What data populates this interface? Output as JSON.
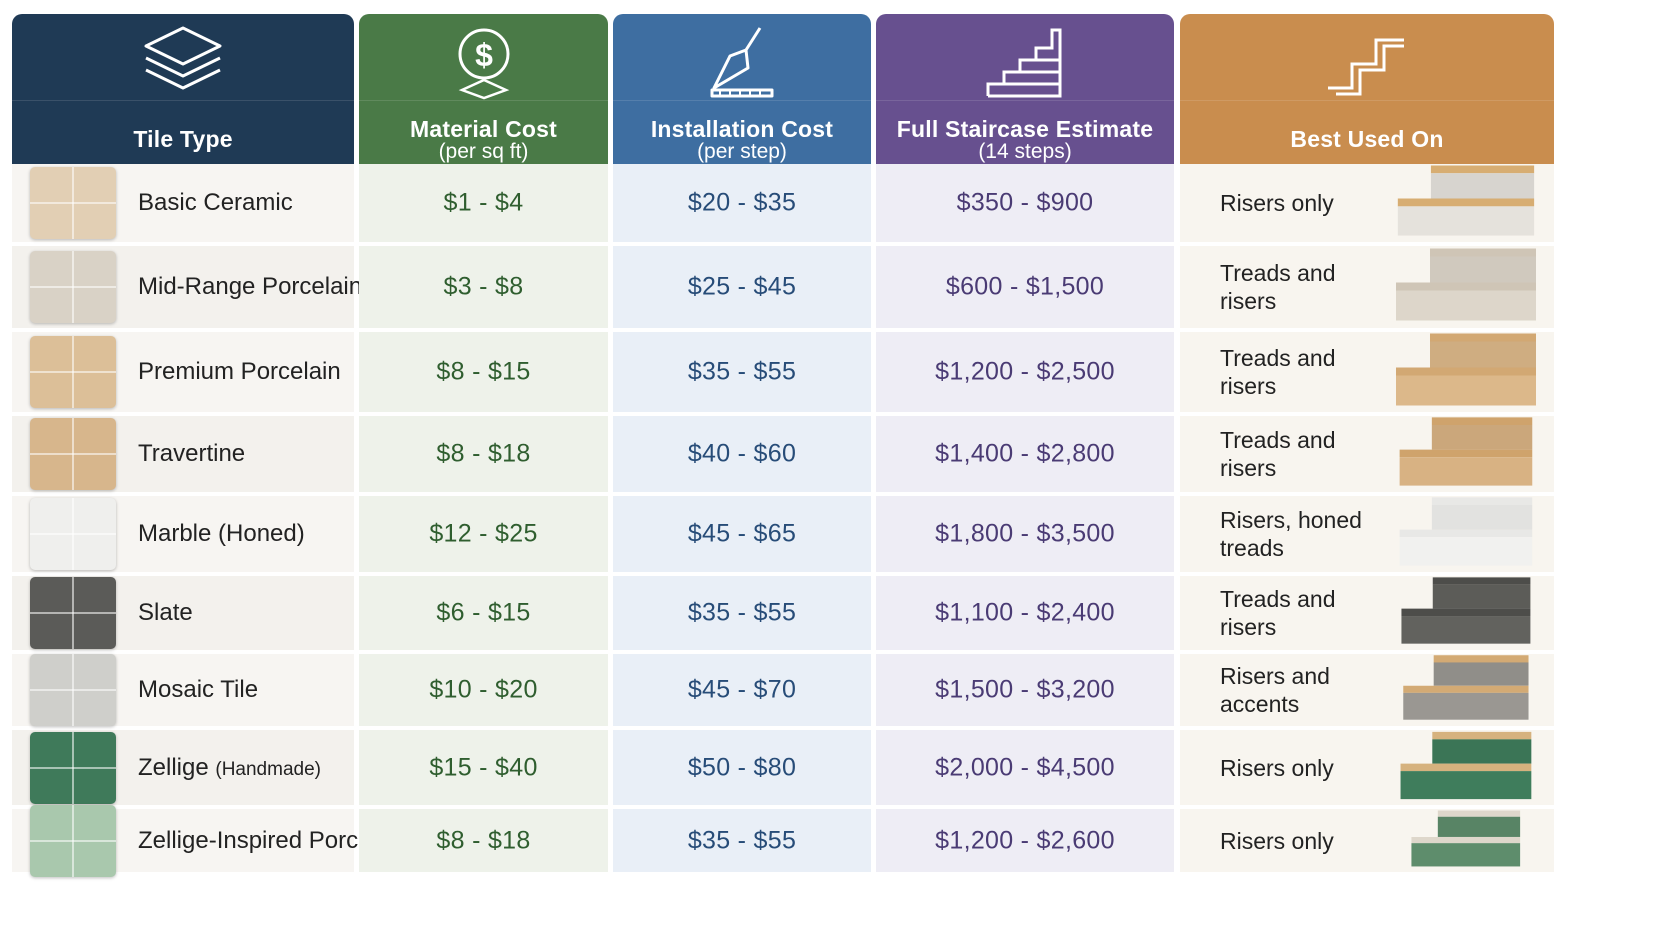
{
  "colors": {
    "tile_header": "#1f3a55",
    "material_header": "#4a7a47",
    "install_header": "#3e6ea1",
    "estimate_header": "#67508f",
    "best_header": "#c98d4e"
  },
  "headers": {
    "tile_type": {
      "label": "Tile Type",
      "icon": "layers-icon"
    },
    "material_cost": {
      "label": "Material Cost",
      "sub": "(per sq ft)",
      "icon": "dollar-coin-icon"
    },
    "installation_cost": {
      "label": "Installation Cost",
      "sub": "(per step)",
      "icon": "trowel-icon"
    },
    "full_estimate": {
      "label": "Full Staircase Estimate",
      "sub": "(14 steps)",
      "icon": "staircase-icon"
    },
    "best_used_on": {
      "label": "Best Used On",
      "icon": "stair-outline-icon"
    }
  },
  "rows": [
    {
      "name": "Basic Ceramic",
      "name_small": "",
      "material": "$1 - $4",
      "install": "$20 - $35",
      "estimate": "$350 - $900",
      "best": "Risers only",
      "swatch": "#e2cfb4",
      "tread": "#d7ad72",
      "riser": "#e5e2dc"
    },
    {
      "name": "Mid-Range Porcelain",
      "name_small": "",
      "material": "$3 - $8",
      "install": "$25 - $45",
      "estimate": "$600 - $1,500",
      "best": "Treads and risers",
      "swatch": "#d9d2c6",
      "tread": "#cfc5b6",
      "riser": "#ddd6ca"
    },
    {
      "name": "Premium Porcelain",
      "name_small": "",
      "material": "$8 - $15",
      "install": "$35 - $55",
      "estimate": "$1,200 - $2,500",
      "best": "Treads and risers",
      "swatch": "#dcbf98",
      "tread": "#d2a873",
      "riser": "#dcb88a"
    },
    {
      "name": "Travertine",
      "name_small": "",
      "material": "$8 - $18",
      "install": "$40 - $60",
      "estimate": "$1,400 - $2,800",
      "best": "Treads and risers",
      "swatch": "#d7b68c",
      "tread": "#cfa36c",
      "riser": "#d8b283"
    },
    {
      "name": "Marble (Honed)",
      "name_small": "",
      "material": "$12 - $25",
      "install": "$45 - $65",
      "estimate": "$1,800 - $3,500",
      "best": "Risers, honed treads",
      "swatch": "#efefed",
      "tread": "#e8e8e6",
      "riser": "#f1f1ef"
    },
    {
      "name": "Slate",
      "name_small": "",
      "material": "$6 - $15",
      "install": "$35 - $55",
      "estimate": "$1,100 - $2,400",
      "best": "Treads and risers",
      "swatch": "#5b5b58",
      "tread": "#4d4d4a",
      "riser": "#62625e"
    },
    {
      "name": "Mosaic Tile",
      "name_small": "",
      "material": "$10 - $20",
      "install": "$45 - $70",
      "estimate": "$1,500 - $3,200",
      "best": "Risers and accents",
      "swatch": "#cfcfcb",
      "tread": "#d3aa74",
      "riser": "#9a9792"
    },
    {
      "name": "Zellige",
      "name_small": "(Handmade)",
      "material": "$15 - $40",
      "install": "$50 - $80",
      "estimate": "$2,000 - $4,500",
      "best": "Risers only",
      "swatch": "#3f7a5a",
      "tread": "#d6b27e",
      "riser": "#3f7d5c"
    },
    {
      "name": "Zellige-Inspired Porcelain",
      "name_small": "",
      "material": "$8 - $18",
      "install": "$35 - $55",
      "estimate": "$1,200 - $2,600",
      "best": "Risers only",
      "swatch": "#a9c8ad",
      "tread": "#ded7cb",
      "riser": "#5e8d6c"
    }
  ]
}
